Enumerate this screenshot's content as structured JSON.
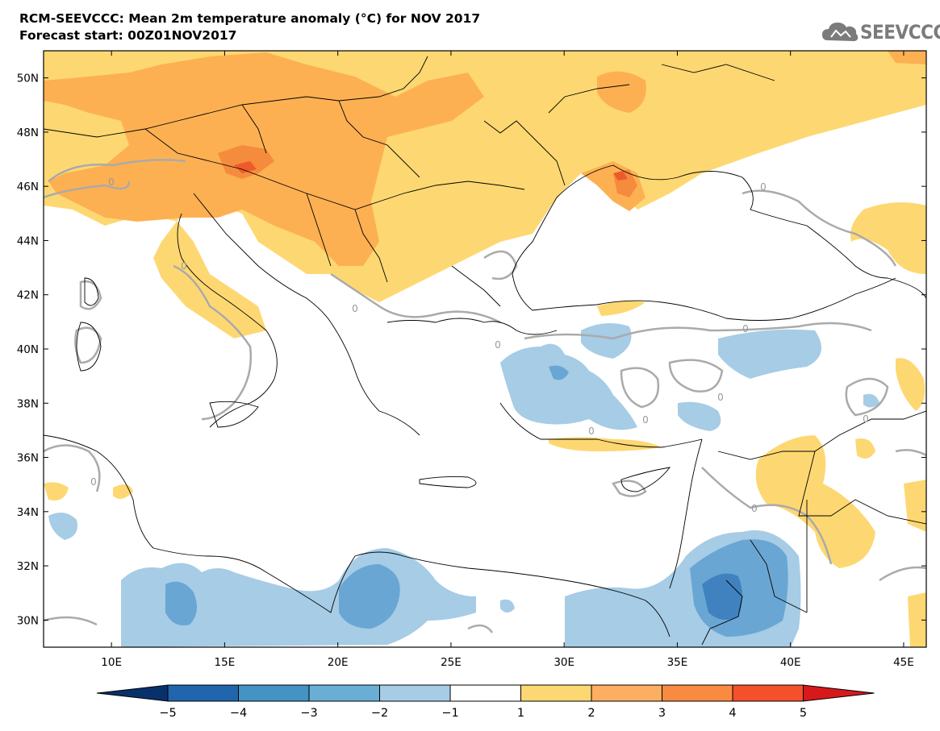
{
  "title": {
    "line1": "RCM-SEEVCCC: Mean 2m temperature anomaly (°C) for NOV 2017",
    "line2": "Forecast start: 00Z01NOV2017"
  },
  "logo": {
    "text": "SEEVCCC",
    "icon": "cloud-icon",
    "color": "#7b7b7b"
  },
  "map": {
    "lat_labels": [
      {
        "lat": 50,
        "label": "50N"
      },
      {
        "lat": 48,
        "label": "48N"
      },
      {
        "lat": 46,
        "label": "46N"
      },
      {
        "lat": 44,
        "label": "44N"
      },
      {
        "lat": 42,
        "label": "42N"
      },
      {
        "lat": 40,
        "label": "40N"
      },
      {
        "lat": 38,
        "label": "38N"
      },
      {
        "lat": 36,
        "label": "36N"
      },
      {
        "lat": 34,
        "label": "34N"
      },
      {
        "lat": 32,
        "label": "32N"
      },
      {
        "lat": 30,
        "label": "30N"
      }
    ],
    "lon_labels": [
      {
        "lon": 10,
        "label": "10E"
      },
      {
        "lon": 15,
        "label": "15E"
      },
      {
        "lon": 20,
        "label": "20E"
      },
      {
        "lon": 25,
        "label": "25E"
      },
      {
        "lon": 30,
        "label": "30E"
      },
      {
        "lon": 35,
        "label": "35E"
      },
      {
        "lon": 40,
        "label": "40E"
      },
      {
        "lon": 45,
        "label": "45E"
      }
    ],
    "lon_range": [
      7,
      46
    ],
    "lat_range": [
      29,
      51
    ],
    "contour_labels": [
      "0"
    ]
  },
  "colorbar": {
    "levels": [
      "−5",
      "−4",
      "−3",
      "−2",
      "−1",
      "1",
      "2",
      "3",
      "4",
      "5"
    ],
    "colors": [
      "#08306b",
      "#2166ac",
      "#4393c3",
      "#6aaed6",
      "#a6cce6",
      "#ffffff",
      "#fdd872",
      "#fdae61",
      "#f88b41",
      "#f4502b",
      "#d7191c"
    ]
  },
  "anomaly_colors": {
    "warm1": "#fdd872",
    "warm2": "#fdb052",
    "warm3": "#f58b3c",
    "warm4": "#ef5a2a",
    "cool1": "#a6cce6",
    "cool2": "#6aa6d3",
    "cool3": "#3f82bf",
    "zero_contour": "#aaaaaa",
    "borders": "#000000"
  }
}
